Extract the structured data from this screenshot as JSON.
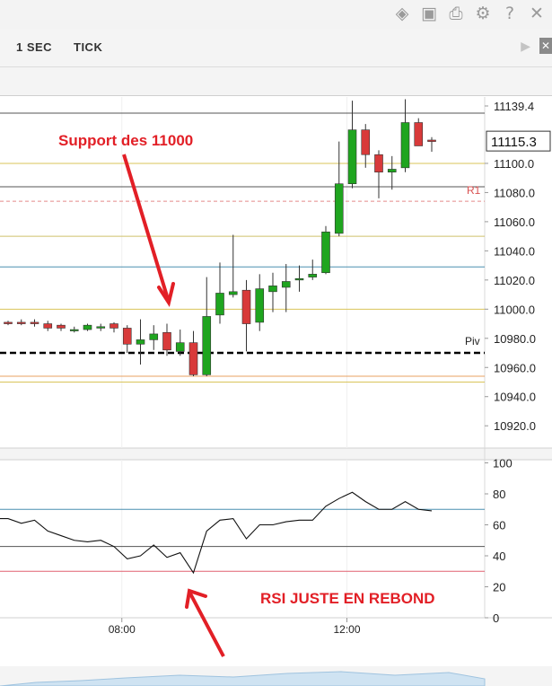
{
  "toolbar": {
    "icons": [
      "layers-icon",
      "image-icon",
      "print-icon",
      "gear-icon",
      "help-icon",
      "close-icon"
    ],
    "glyphs": [
      "◈",
      "▣",
      "⎙",
      "⚙",
      "?",
      "✕"
    ]
  },
  "tabs": [
    {
      "label": "1 SEC"
    },
    {
      "label": "TICK"
    }
  ],
  "colors": {
    "bull": "#1fa51f",
    "bear": "#d83a3a",
    "annotation": "#e21f26",
    "pivot": "#000000"
  },
  "chart_data": [
    {
      "type": "candlestick",
      "ylim": [
        10910,
        11150
      ],
      "ytick_labels": [
        "11139.4",
        "11100.0",
        "11080.0",
        "11060.0",
        "11040.0",
        "11020.0",
        "11000.0",
        "10980.0",
        "10960.0",
        "10940.0",
        "10920.0"
      ],
      "yticks": [
        11139.4,
        11100,
        11080,
        11060,
        11040,
        11020,
        11000,
        10980,
        10960,
        10940,
        10920
      ],
      "last_price_label": "11115.3",
      "last_price": 11115.3,
      "level_labels": {
        "r1": "R1",
        "pivot": "Piv"
      },
      "levels": [
        {
          "value": 11134.5,
          "color": "#555555",
          "style": "solid"
        },
        {
          "value": 11100,
          "color": "#d9c45a",
          "style": "solid"
        },
        {
          "value": 11084,
          "color": "#555555",
          "style": "solid"
        },
        {
          "value": 11074,
          "color": "#e58a8a",
          "style": "dashed"
        },
        {
          "value": 11050,
          "color": "#cfc16a",
          "style": "solid"
        },
        {
          "value": 11029,
          "color": "#4a8fb0",
          "style": "solid"
        },
        {
          "value": 11000,
          "color": "#d9c45a",
          "style": "solid"
        },
        {
          "value": 10970,
          "color": "#000000",
          "style": "dashed-bold"
        },
        {
          "value": 10954,
          "color": "#e8a060",
          "style": "solid"
        },
        {
          "value": 10950,
          "color": "#d9c45a",
          "style": "solid"
        }
      ],
      "candles": [
        {
          "o": 10991,
          "h": 10992,
          "l": 10989,
          "c": 10990
        },
        {
          "o": 10991,
          "h": 10993,
          "l": 10989,
          "c": 10990
        },
        {
          "o": 10991,
          "h": 10993,
          "l": 10988,
          "c": 10990
        },
        {
          "o": 10990,
          "h": 10992,
          "l": 10985,
          "c": 10987
        },
        {
          "o": 10989,
          "h": 10990,
          "l": 10985,
          "c": 10987
        },
        {
          "o": 10986,
          "h": 10988,
          "l": 10984,
          "c": 10986
        },
        {
          "o": 10986,
          "h": 10990,
          "l": 10985,
          "c": 10989
        },
        {
          "o": 10987,
          "h": 10990,
          "l": 10985,
          "c": 10988
        },
        {
          "o": 10990,
          "h": 10991,
          "l": 10984,
          "c": 10987
        },
        {
          "o": 10987,
          "h": 10989,
          "l": 10970,
          "c": 10976
        },
        {
          "o": 10976,
          "h": 10993,
          "l": 10962,
          "c": 10979
        },
        {
          "o": 10979,
          "h": 10989,
          "l": 10972,
          "c": 10983
        },
        {
          "o": 10984,
          "h": 10990,
          "l": 10968,
          "c": 10972
        },
        {
          "o": 10971,
          "h": 10986,
          "l": 10968,
          "c": 10977
        },
        {
          "o": 10977,
          "h": 10985,
          "l": 10954,
          "c": 10955
        },
        {
          "o": 10955,
          "h": 11022,
          "l": 10954,
          "c": 10995
        },
        {
          "o": 10996,
          "h": 11032,
          "l": 10990,
          "c": 11011
        },
        {
          "o": 11010,
          "h": 11051,
          "l": 11008,
          "c": 11012
        },
        {
          "o": 11013,
          "h": 11020,
          "l": 10971,
          "c": 10990
        },
        {
          "o": 10991,
          "h": 11024,
          "l": 10985,
          "c": 11014
        },
        {
          "o": 11012,
          "h": 11025,
          "l": 10998,
          "c": 11016
        },
        {
          "o": 11015,
          "h": 11031,
          "l": 10998,
          "c": 11019
        },
        {
          "o": 11020,
          "h": 11030,
          "l": 11012,
          "c": 11021
        },
        {
          "o": 11022,
          "h": 11034,
          "l": 11020,
          "c": 11024
        },
        {
          "o": 11025,
          "h": 11057,
          "l": 11024,
          "c": 11053
        },
        {
          "o": 11052,
          "h": 11115,
          "l": 11050,
          "c": 11086
        },
        {
          "o": 11086,
          "h": 11143,
          "l": 11083,
          "c": 11123
        },
        {
          "o": 11123,
          "h": 11127,
          "l": 11097,
          "c": 11106
        },
        {
          "o": 11106,
          "h": 11109,
          "l": 11076,
          "c": 11094
        },
        {
          "o": 11094,
          "h": 11105,
          "l": 11082,
          "c": 11096
        },
        {
          "o": 11097,
          "h": 11144,
          "l": 11094,
          "c": 11128
        },
        {
          "o": 11128,
          "h": 11131,
          "l": 11112,
          "c": 11112
        },
        {
          "o": 11116,
          "h": 11118,
          "l": 11108,
          "c": 11115
        }
      ]
    },
    {
      "type": "line",
      "name": "RSI",
      "ylim": [
        0,
        100
      ],
      "yticks": [
        0,
        20,
        40,
        60,
        80,
        100
      ],
      "levels": [
        {
          "value": 70,
          "color": "#4a8fb0"
        },
        {
          "value": 46,
          "color": "#555555"
        },
        {
          "value": 30,
          "color": "#e06070"
        }
      ],
      "values": [
        64,
        61,
        63,
        56,
        53,
        50,
        49,
        50,
        46,
        38,
        40,
        47,
        39,
        42,
        29,
        56,
        63,
        64,
        51,
        60,
        60,
        62,
        63,
        63,
        72,
        77,
        81,
        75,
        70,
        70,
        75,
        70,
        69
      ]
    }
  ],
  "xaxis": {
    "ticks": [
      {
        "label": "08:00",
        "index": 9
      },
      {
        "label": "12:00",
        "index": 26
      }
    ]
  },
  "annotations": {
    "support": "Support des 11000",
    "rsi": "RSI JUSTE EN REBOND"
  }
}
